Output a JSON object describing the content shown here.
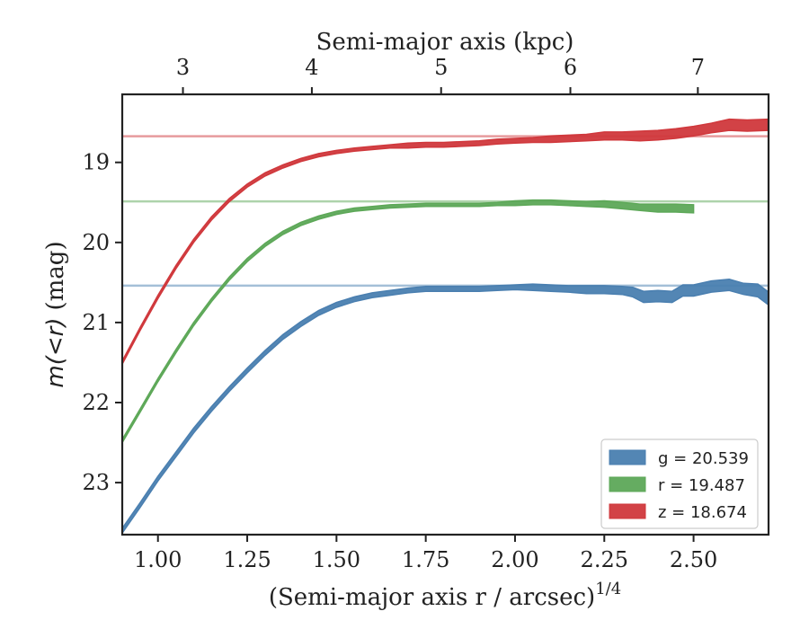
{
  "chart_data": {
    "type": "area",
    "title": "",
    "xlabel": "(Semi-major axis r / arcsec)",
    "xlabel_power": "1/4",
    "ylabel_math": "m(<r)",
    "ylabel_unit": "(mag)",
    "top_xlabel": "Semi-major axis (kpc)",
    "xlim": [
      0.9,
      2.71
    ],
    "ylim": [
      23.65,
      18.15
    ],
    "y_inverted": true,
    "x_ticks": [
      1.0,
      1.25,
      1.5,
      1.75,
      2.0,
      2.25,
      2.5
    ],
    "x_tick_labels": [
      "1.00",
      "1.25",
      "1.50",
      "1.75",
      "2.00",
      "2.25",
      "2.50"
    ],
    "y_ticks": [
      19,
      20,
      21,
      22,
      23
    ],
    "y_tick_labels": [
      "19",
      "20",
      "21",
      "22",
      "23"
    ],
    "top_ticks": [
      {
        "x": 1.07,
        "label": "3"
      },
      {
        "x": 1.431,
        "label": "4"
      },
      {
        "x": 1.793,
        "label": "5"
      },
      {
        "x": 2.155,
        "label": "6"
      },
      {
        "x": 2.512,
        "label": "7"
      }
    ],
    "grid": false,
    "legend_position": "lower-right",
    "series": [
      {
        "band": "g",
        "legend_label": "g = 20.539",
        "color": "#4a7fb0",
        "asymptote": 20.539,
        "points": [
          [
            0.9,
            23.6,
            0.03
          ],
          [
            0.95,
            23.28,
            0.03
          ],
          [
            1.0,
            22.95,
            0.03
          ],
          [
            1.05,
            22.65,
            0.03
          ],
          [
            1.1,
            22.35,
            0.03
          ],
          [
            1.15,
            22.08,
            0.03
          ],
          [
            1.2,
            21.83,
            0.03
          ],
          [
            1.25,
            21.6,
            0.03
          ],
          [
            1.3,
            21.38,
            0.03
          ],
          [
            1.35,
            21.18,
            0.03
          ],
          [
            1.4,
            21.02,
            0.03
          ],
          [
            1.45,
            20.88,
            0.03
          ],
          [
            1.5,
            20.78,
            0.03
          ],
          [
            1.55,
            20.71,
            0.03
          ],
          [
            1.6,
            20.66,
            0.03
          ],
          [
            1.65,
            20.63,
            0.03
          ],
          [
            1.7,
            20.6,
            0.03
          ],
          [
            1.75,
            20.58,
            0.03
          ],
          [
            1.8,
            20.58,
            0.03
          ],
          [
            1.85,
            20.58,
            0.03
          ],
          [
            1.9,
            20.58,
            0.03
          ],
          [
            1.95,
            20.57,
            0.03
          ],
          [
            2.0,
            20.56,
            0.03
          ],
          [
            2.05,
            20.56,
            0.04
          ],
          [
            2.1,
            20.57,
            0.04
          ],
          [
            2.15,
            20.58,
            0.04
          ],
          [
            2.2,
            20.59,
            0.05
          ],
          [
            2.25,
            20.59,
            0.05
          ],
          [
            2.3,
            20.6,
            0.05
          ],
          [
            2.33,
            20.62,
            0.06
          ],
          [
            2.36,
            20.68,
            0.07
          ],
          [
            2.4,
            20.67,
            0.07
          ],
          [
            2.44,
            20.68,
            0.07
          ],
          [
            2.47,
            20.6,
            0.07
          ],
          [
            2.5,
            20.6,
            0.07
          ],
          [
            2.55,
            20.55,
            0.07
          ],
          [
            2.6,
            20.53,
            0.07
          ],
          [
            2.64,
            20.58,
            0.07
          ],
          [
            2.68,
            20.6,
            0.08
          ],
          [
            2.71,
            20.7,
            0.08
          ]
        ]
      },
      {
        "band": "r",
        "legend_label": "r = 19.487",
        "color": "#5da858",
        "asymptote": 19.487,
        "points": [
          [
            0.9,
            22.48,
            0.02
          ],
          [
            0.95,
            22.1,
            0.02
          ],
          [
            1.0,
            21.72,
            0.02
          ],
          [
            1.05,
            21.36,
            0.02
          ],
          [
            1.1,
            21.02,
            0.02
          ],
          [
            1.15,
            20.72,
            0.02
          ],
          [
            1.2,
            20.45,
            0.02
          ],
          [
            1.25,
            20.22,
            0.02
          ],
          [
            1.3,
            20.03,
            0.02
          ],
          [
            1.35,
            19.88,
            0.02
          ],
          [
            1.4,
            19.77,
            0.02
          ],
          [
            1.45,
            19.69,
            0.02
          ],
          [
            1.5,
            19.63,
            0.02
          ],
          [
            1.55,
            19.59,
            0.02
          ],
          [
            1.6,
            19.57,
            0.02
          ],
          [
            1.65,
            19.55,
            0.02
          ],
          [
            1.7,
            19.54,
            0.02
          ],
          [
            1.75,
            19.53,
            0.02
          ],
          [
            1.8,
            19.53,
            0.02
          ],
          [
            1.85,
            19.53,
            0.02
          ],
          [
            1.9,
            19.53,
            0.02
          ],
          [
            1.95,
            19.52,
            0.02
          ],
          [
            2.0,
            19.51,
            0.03
          ],
          [
            2.05,
            19.5,
            0.03
          ],
          [
            2.1,
            19.5,
            0.03
          ],
          [
            2.15,
            19.51,
            0.03
          ],
          [
            2.2,
            19.52,
            0.03
          ],
          [
            2.25,
            19.52,
            0.04
          ],
          [
            2.3,
            19.54,
            0.04
          ],
          [
            2.35,
            19.56,
            0.04
          ],
          [
            2.4,
            19.57,
            0.05
          ],
          [
            2.45,
            19.57,
            0.05
          ],
          [
            2.5,
            19.58,
            0.05
          ]
        ]
      },
      {
        "band": "z",
        "legend_label": "z = 18.674",
        "color": "#d0383c",
        "asymptote": 18.674,
        "points": [
          [
            0.9,
            21.5,
            0.02
          ],
          [
            0.95,
            21.08,
            0.02
          ],
          [
            1.0,
            20.68,
            0.02
          ],
          [
            1.05,
            20.31,
            0.02
          ],
          [
            1.1,
            19.98,
            0.02
          ],
          [
            1.15,
            19.7,
            0.02
          ],
          [
            1.2,
            19.47,
            0.02
          ],
          [
            1.25,
            19.29,
            0.02
          ],
          [
            1.3,
            19.15,
            0.02
          ],
          [
            1.35,
            19.05,
            0.02
          ],
          [
            1.4,
            18.97,
            0.02
          ],
          [
            1.45,
            18.91,
            0.02
          ],
          [
            1.5,
            18.87,
            0.02
          ],
          [
            1.55,
            18.84,
            0.02
          ],
          [
            1.6,
            18.82,
            0.02
          ],
          [
            1.65,
            18.8,
            0.02
          ],
          [
            1.7,
            18.79,
            0.03
          ],
          [
            1.75,
            18.78,
            0.03
          ],
          [
            1.8,
            18.78,
            0.03
          ],
          [
            1.85,
            18.77,
            0.03
          ],
          [
            1.9,
            18.76,
            0.03
          ],
          [
            1.95,
            18.74,
            0.03
          ],
          [
            2.0,
            18.73,
            0.03
          ],
          [
            2.05,
            18.72,
            0.03
          ],
          [
            2.1,
            18.71,
            0.04
          ],
          [
            2.15,
            18.7,
            0.04
          ],
          [
            2.2,
            18.69,
            0.04
          ],
          [
            2.25,
            18.67,
            0.05
          ],
          [
            2.3,
            18.67,
            0.05
          ],
          [
            2.35,
            18.67,
            0.06
          ],
          [
            2.4,
            18.66,
            0.06
          ],
          [
            2.45,
            18.64,
            0.06
          ],
          [
            2.5,
            18.61,
            0.06
          ],
          [
            2.55,
            18.57,
            0.06
          ],
          [
            2.6,
            18.53,
            0.07
          ],
          [
            2.65,
            18.54,
            0.07
          ],
          [
            2.71,
            18.53,
            0.07
          ]
        ]
      }
    ]
  }
}
